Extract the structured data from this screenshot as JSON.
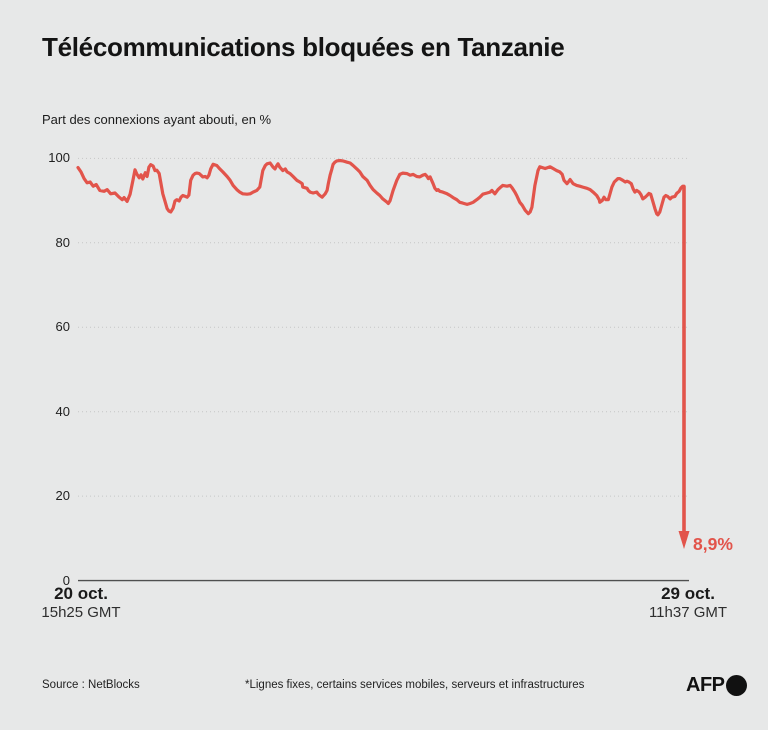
{
  "header": {
    "title": "Télécommunications bloquées en Tanzanie",
    "subtitle": "Part des connexions ayant abouti, en %"
  },
  "chart_data": {
    "type": "line",
    "title": "Télécommunications bloquées en Tanzanie",
    "ylabel": "Part des connexions ayant abouti, en %",
    "ylim": [
      0,
      100
    ],
    "yticks": [
      0,
      20,
      40,
      60,
      80,
      100
    ],
    "grid": "dotted horizontal gridlines, solid zero axis",
    "legend_position": "none",
    "x_start_label": {
      "date": "20 oct.",
      "time": "15h25 GMT"
    },
    "x_end_label": {
      "date": "29 oct.",
      "time": "11h37 GMT"
    },
    "final_value": 8.9,
    "final_value_label": "8,9%",
    "line_color": "#e2544b",
    "series": [
      {
        "name": "Part des connexions ayant abouti (%)",
        "x_unit": "fraction of time range 20 oct. 15h25 GMT → 29 oct. 11h37 GMT",
        "points": [
          [
            0.0,
            97.8
          ],
          [
            0.005,
            96.8
          ],
          [
            0.01,
            95.2
          ],
          [
            0.015,
            94.2
          ],
          [
            0.02,
            94.4
          ],
          [
            0.025,
            93.4
          ],
          [
            0.03,
            93.8
          ],
          [
            0.036,
            92.4
          ],
          [
            0.043,
            92.2
          ],
          [
            0.048,
            92.6
          ],
          [
            0.054,
            91.6
          ],
          [
            0.061,
            91.8
          ],
          [
            0.068,
            90.8
          ],
          [
            0.073,
            90.2
          ],
          [
            0.076,
            90.7
          ],
          [
            0.081,
            89.8
          ],
          [
            0.086,
            91.5
          ],
          [
            0.091,
            95.0
          ],
          [
            0.094,
            97.3
          ],
          [
            0.097,
            96.3
          ],
          [
            0.101,
            95.4
          ],
          [
            0.104,
            96.1
          ],
          [
            0.107,
            95.1
          ],
          [
            0.111,
            96.6
          ],
          [
            0.114,
            95.7
          ],
          [
            0.117,
            97.9
          ],
          [
            0.12,
            98.5
          ],
          [
            0.124,
            98.2
          ],
          [
            0.127,
            97.1
          ],
          [
            0.13,
            97.2
          ],
          [
            0.134,
            96.4
          ],
          [
            0.137,
            94.0
          ],
          [
            0.14,
            91.6
          ],
          [
            0.144,
            89.6
          ],
          [
            0.147,
            88.1
          ],
          [
            0.15,
            87.5
          ],
          [
            0.153,
            87.3
          ],
          [
            0.157,
            88.2
          ],
          [
            0.16,
            89.9
          ],
          [
            0.163,
            90.2
          ],
          [
            0.167,
            89.9
          ],
          [
            0.17,
            90.8
          ],
          [
            0.173,
            91.2
          ],
          [
            0.177,
            91.0
          ],
          [
            0.18,
            90.8
          ],
          [
            0.183,
            91.3
          ],
          [
            0.186,
            94.8
          ],
          [
            0.19,
            96.0
          ],
          [
            0.193,
            96.4
          ],
          [
            0.196,
            96.5
          ],
          [
            0.2,
            96.4
          ],
          [
            0.203,
            96.0
          ],
          [
            0.206,
            95.6
          ],
          [
            0.21,
            95.7
          ],
          [
            0.213,
            95.4
          ],
          [
            0.216,
            96.0
          ],
          [
            0.219,
            97.5
          ],
          [
            0.223,
            98.6
          ],
          [
            0.229,
            98.3
          ],
          [
            0.234,
            97.5
          ],
          [
            0.239,
            96.8
          ],
          [
            0.246,
            95.7
          ],
          [
            0.251,
            94.8
          ],
          [
            0.256,
            93.6
          ],
          [
            0.262,
            92.6
          ],
          [
            0.267,
            92.0
          ],
          [
            0.272,
            91.6
          ],
          [
            0.279,
            91.5
          ],
          [
            0.284,
            91.6
          ],
          [
            0.289,
            92.0
          ],
          [
            0.295,
            92.4
          ],
          [
            0.3,
            93.2
          ],
          [
            0.305,
            97.1
          ],
          [
            0.309,
            98.3
          ],
          [
            0.312,
            98.7
          ],
          [
            0.317,
            98.9
          ],
          [
            0.322,
            97.9
          ],
          [
            0.325,
            97.5
          ],
          [
            0.328,
            98.3
          ],
          [
            0.33,
            98.7
          ],
          [
            0.333,
            97.9
          ],
          [
            0.338,
            97.1
          ],
          [
            0.342,
            97.5
          ],
          [
            0.345,
            96.8
          ],
          [
            0.35,
            96.4
          ],
          [
            0.355,
            95.7
          ],
          [
            0.361,
            94.8
          ],
          [
            0.366,
            94.4
          ],
          [
            0.37,
            94.0
          ],
          [
            0.371,
            93.2
          ],
          [
            0.378,
            92.9
          ],
          [
            0.38,
            92.4
          ],
          [
            0.383,
            92.0
          ],
          [
            0.388,
            91.8
          ],
          [
            0.394,
            92.0
          ],
          [
            0.396,
            91.6
          ],
          [
            0.399,
            91.2
          ],
          [
            0.403,
            90.8
          ],
          [
            0.404,
            91.0
          ],
          [
            0.408,
            91.6
          ],
          [
            0.411,
            92.4
          ],
          [
            0.413,
            94.0
          ],
          [
            0.416,
            96.0
          ],
          [
            0.419,
            97.5
          ],
          [
            0.421,
            98.6
          ],
          [
            0.424,
            99.1
          ],
          [
            0.427,
            99.4
          ],
          [
            0.432,
            99.5
          ],
          [
            0.437,
            99.4
          ],
          [
            0.444,
            99.1
          ],
          [
            0.449,
            98.9
          ],
          [
            0.454,
            98.3
          ],
          [
            0.46,
            97.5
          ],
          [
            0.465,
            96.8
          ],
          [
            0.47,
            95.7
          ],
          [
            0.477,
            94.8
          ],
          [
            0.482,
            93.6
          ],
          [
            0.487,
            92.6
          ],
          [
            0.493,
            91.8
          ],
          [
            0.498,
            91.2
          ],
          [
            0.503,
            90.4
          ],
          [
            0.51,
            89.6
          ],
          [
            0.512,
            89.3
          ],
          [
            0.515,
            90.0
          ],
          [
            0.52,
            92.4
          ],
          [
            0.526,
            94.8
          ],
          [
            0.531,
            96.2
          ],
          [
            0.536,
            96.5
          ],
          [
            0.543,
            96.4
          ],
          [
            0.548,
            96.0
          ],
          [
            0.553,
            96.2
          ],
          [
            0.559,
            95.7
          ],
          [
            0.564,
            95.6
          ],
          [
            0.569,
            96.0
          ],
          [
            0.573,
            96.2
          ],
          [
            0.576,
            95.7
          ],
          [
            0.578,
            95.2
          ],
          [
            0.581,
            95.6
          ],
          [
            0.586,
            94.0
          ],
          [
            0.589,
            92.9
          ],
          [
            0.592,
            92.4
          ],
          [
            0.594,
            92.6
          ],
          [
            0.597,
            92.2
          ],
          [
            0.602,
            92.0
          ],
          [
            0.609,
            91.6
          ],
          [
            0.614,
            91.2
          ],
          [
            0.619,
            90.7
          ],
          [
            0.625,
            90.2
          ],
          [
            0.63,
            89.6
          ],
          [
            0.635,
            89.4
          ],
          [
            0.642,
            89.1
          ],
          [
            0.647,
            89.3
          ],
          [
            0.652,
            89.6
          ],
          [
            0.658,
            90.2
          ],
          [
            0.663,
            90.8
          ],
          [
            0.668,
            91.5
          ],
          [
            0.675,
            91.8
          ],
          [
            0.68,
            92.0
          ],
          [
            0.683,
            92.4
          ],
          [
            0.688,
            91.6
          ],
          [
            0.693,
            92.6
          ],
          [
            0.696,
            93.0
          ],
          [
            0.701,
            93.6
          ],
          [
            0.708,
            93.4
          ],
          [
            0.713,
            93.6
          ],
          [
            0.716,
            93.1
          ],
          [
            0.721,
            92.0
          ],
          [
            0.724,
            91.2
          ],
          [
            0.729,
            89.6
          ],
          [
            0.733,
            88.9
          ],
          [
            0.738,
            87.7
          ],
          [
            0.743,
            86.9
          ],
          [
            0.746,
            87.3
          ],
          [
            0.749,
            88.4
          ],
          [
            0.754,
            93.6
          ],
          [
            0.759,
            97.1
          ],
          [
            0.762,
            98.0
          ],
          [
            0.771,
            97.6
          ],
          [
            0.779,
            98.0
          ],
          [
            0.784,
            97.6
          ],
          [
            0.79,
            97.1
          ],
          [
            0.795,
            96.8
          ],
          [
            0.799,
            96.2
          ],
          [
            0.802,
            94.8
          ],
          [
            0.807,
            94.0
          ],
          [
            0.809,
            94.4
          ],
          [
            0.812,
            95.0
          ],
          [
            0.817,
            94.0
          ],
          [
            0.823,
            93.6
          ],
          [
            0.828,
            93.4
          ],
          [
            0.833,
            93.2
          ],
          [
            0.84,
            92.9
          ],
          [
            0.845,
            92.6
          ],
          [
            0.85,
            92.0
          ],
          [
            0.856,
            91.2
          ],
          [
            0.86,
            90.2
          ],
          [
            0.861,
            89.6
          ],
          [
            0.865,
            90.0
          ],
          [
            0.868,
            90.8
          ],
          [
            0.871,
            90.2
          ],
          [
            0.875,
            90.2
          ],
          [
            0.878,
            91.7
          ],
          [
            0.881,
            93.2
          ],
          [
            0.885,
            94.4
          ],
          [
            0.888,
            94.8
          ],
          [
            0.891,
            95.2
          ],
          [
            0.894,
            95.2
          ],
          [
            0.899,
            94.8
          ],
          [
            0.903,
            94.4
          ],
          [
            0.906,
            94.6
          ],
          [
            0.909,
            94.4
          ],
          [
            0.913,
            94.0
          ],
          [
            0.916,
            92.8
          ],
          [
            0.919,
            92.0
          ],
          [
            0.922,
            92.4
          ],
          [
            0.926,
            92.0
          ],
          [
            0.929,
            91.4
          ],
          [
            0.932,
            90.4
          ],
          [
            0.936,
            90.8
          ],
          [
            0.939,
            91.2
          ],
          [
            0.942,
            91.7
          ],
          [
            0.945,
            91.5
          ],
          [
            0.949,
            89.6
          ],
          [
            0.952,
            88.1
          ],
          [
            0.955,
            86.9
          ],
          [
            0.957,
            86.6
          ],
          [
            0.96,
            87.3
          ],
          [
            0.964,
            89.3
          ],
          [
            0.967,
            90.8
          ],
          [
            0.97,
            91.2
          ],
          [
            0.973,
            91.0
          ],
          [
            0.977,
            90.4
          ],
          [
            0.98,
            90.8
          ],
          [
            0.985,
            91.0
          ],
          [
            0.988,
            91.7
          ],
          [
            0.992,
            92.2
          ],
          [
            0.995,
            93.0
          ],
          [
            0.998,
            93.4
          ],
          [
            1.0,
            93.4
          ]
        ]
      }
    ],
    "drop": {
      "x": 1.0,
      "from": 93.4,
      "to": 8.9
    }
  },
  "footer": {
    "source": "Source : NetBlocks",
    "note": "*Lignes fixes, certains services mobiles, serveurs et infrastructures",
    "logo_text": "AFP"
  },
  "colors": {
    "background": "#e7e8e8",
    "accent_red": "#e2544b",
    "text": "#141414",
    "gridline": "#c6c6c6",
    "axis": "#4f4f4f"
  }
}
